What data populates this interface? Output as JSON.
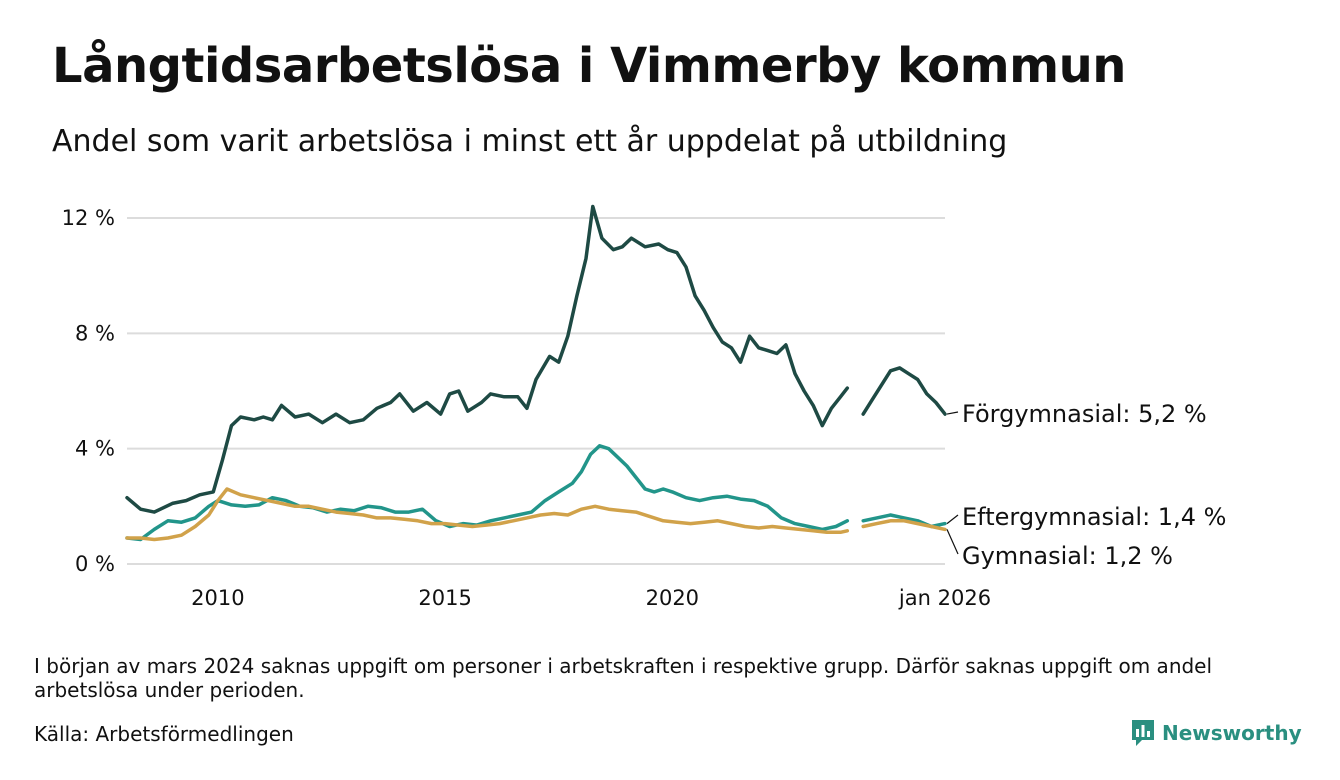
{
  "title": "Långtidsarbetslösa i Vimmerby kommun",
  "subtitle": "Andel som varit arbetslösa i minst ett år uppdelat på utbildning",
  "note": "I början av mars 2024 saknas uppgift om personer i arbetskraften i respektive grupp. Därför saknas uppgift om andel arbetslösa under perioden.",
  "source": "Källa: Arbetsförmedlingen",
  "brand": {
    "name": "Newsworthy",
    "icon": "newsworthy-logo-icon",
    "color": "#2a8f80"
  },
  "chart_data": {
    "type": "line",
    "title": "Långtidsarbetslösa i Vimmerby kommun",
    "ylabel": "",
    "xlabel": "",
    "x_range": [
      2008.0,
      2026.0
    ],
    "ylim": [
      0,
      12.6
    ],
    "y_ticks": [
      0,
      4,
      8,
      12
    ],
    "y_tick_labels": [
      "0 %",
      "4 %",
      "8 %",
      "12 %"
    ],
    "x_ticks": [
      2010,
      2015,
      2020,
      2026.0
    ],
    "x_tick_labels": [
      "2010",
      "2015",
      "2020",
      "jan 2026"
    ],
    "grid": true,
    "gap": [
      2023.85,
      2024.2
    ],
    "series": [
      {
        "name": "Förgymnasial",
        "label": "Förgymnasial: 5,2 %",
        "color": "#1e4a44",
        "points": [
          [
            2008.0,
            2.3
          ],
          [
            2008.3,
            1.9
          ],
          [
            2008.6,
            1.8
          ],
          [
            2009.0,
            2.1
          ],
          [
            2009.3,
            2.2
          ],
          [
            2009.6,
            2.4
          ],
          [
            2009.9,
            2.5
          ],
          [
            2010.1,
            3.6
          ],
          [
            2010.3,
            4.8
          ],
          [
            2010.5,
            5.1
          ],
          [
            2010.8,
            5.0
          ],
          [
            2011.0,
            5.1
          ],
          [
            2011.2,
            5.0
          ],
          [
            2011.4,
            5.5
          ],
          [
            2011.7,
            5.1
          ],
          [
            2012.0,
            5.2
          ],
          [
            2012.3,
            4.9
          ],
          [
            2012.6,
            5.2
          ],
          [
            2012.9,
            4.9
          ],
          [
            2013.2,
            5.0
          ],
          [
            2013.5,
            5.4
          ],
          [
            2013.8,
            5.6
          ],
          [
            2014.0,
            5.9
          ],
          [
            2014.3,
            5.3
          ],
          [
            2014.6,
            5.6
          ],
          [
            2014.9,
            5.2
          ],
          [
            2015.1,
            5.9
          ],
          [
            2015.3,
            6.0
          ],
          [
            2015.5,
            5.3
          ],
          [
            2015.8,
            5.6
          ],
          [
            2016.0,
            5.9
          ],
          [
            2016.3,
            5.8
          ],
          [
            2016.6,
            5.8
          ],
          [
            2016.8,
            5.4
          ],
          [
            2017.0,
            6.4
          ],
          [
            2017.3,
            7.2
          ],
          [
            2017.5,
            7.0
          ],
          [
            2017.7,
            7.9
          ],
          [
            2017.9,
            9.3
          ],
          [
            2018.1,
            10.6
          ],
          [
            2018.25,
            12.4
          ],
          [
            2018.45,
            11.3
          ],
          [
            2018.7,
            10.9
          ],
          [
            2018.9,
            11.0
          ],
          [
            2019.1,
            11.3
          ],
          [
            2019.4,
            11.0
          ],
          [
            2019.7,
            11.1
          ],
          [
            2019.9,
            10.9
          ],
          [
            2020.1,
            10.8
          ],
          [
            2020.3,
            10.3
          ],
          [
            2020.5,
            9.3
          ],
          [
            2020.7,
            8.8
          ],
          [
            2020.9,
            8.2
          ],
          [
            2021.1,
            7.7
          ],
          [
            2021.3,
            7.5
          ],
          [
            2021.5,
            7.0
          ],
          [
            2021.7,
            7.9
          ],
          [
            2021.9,
            7.5
          ],
          [
            2022.1,
            7.4
          ],
          [
            2022.3,
            7.3
          ],
          [
            2022.5,
            7.6
          ],
          [
            2022.7,
            6.6
          ],
          [
            2022.9,
            6.0
          ],
          [
            2023.1,
            5.5
          ],
          [
            2023.3,
            4.8
          ],
          [
            2023.5,
            5.4
          ],
          [
            2023.7,
            5.8
          ],
          [
            2023.85,
            6.1
          ],
          [
            2024.2,
            5.2
          ],
          [
            2024.4,
            5.7
          ],
          [
            2024.6,
            6.2
          ],
          [
            2024.8,
            6.7
          ],
          [
            2025.0,
            6.8
          ],
          [
            2025.2,
            6.6
          ],
          [
            2025.4,
            6.4
          ],
          [
            2025.6,
            5.9
          ],
          [
            2025.8,
            5.6
          ],
          [
            2026.0,
            5.2
          ]
        ]
      },
      {
        "name": "Eftergymnasial",
        "label": "Eftergymnasial: 1,4 %",
        "color": "#22958a",
        "points": [
          [
            2008.0,
            0.9
          ],
          [
            2008.3,
            0.85
          ],
          [
            2008.6,
            1.2
          ],
          [
            2008.9,
            1.5
          ],
          [
            2009.2,
            1.45
          ],
          [
            2009.5,
            1.6
          ],
          [
            2009.8,
            2.0
          ],
          [
            2010.0,
            2.2
          ],
          [
            2010.3,
            2.05
          ],
          [
            2010.6,
            2.0
          ],
          [
            2010.9,
            2.05
          ],
          [
            2011.2,
            2.3
          ],
          [
            2011.5,
            2.2
          ],
          [
            2011.8,
            2.0
          ],
          [
            2012.1,
            1.95
          ],
          [
            2012.4,
            1.8
          ],
          [
            2012.7,
            1.9
          ],
          [
            2013.0,
            1.85
          ],
          [
            2013.3,
            2.0
          ],
          [
            2013.6,
            1.95
          ],
          [
            2013.9,
            1.8
          ],
          [
            2014.2,
            1.8
          ],
          [
            2014.5,
            1.9
          ],
          [
            2014.8,
            1.5
          ],
          [
            2015.1,
            1.3
          ],
          [
            2015.4,
            1.4
          ],
          [
            2015.7,
            1.35
          ],
          [
            2016.0,
            1.5
          ],
          [
            2016.3,
            1.6
          ],
          [
            2016.6,
            1.7
          ],
          [
            2016.9,
            1.8
          ],
          [
            2017.2,
            2.2
          ],
          [
            2017.5,
            2.5
          ],
          [
            2017.8,
            2.8
          ],
          [
            2018.0,
            3.2
          ],
          [
            2018.2,
            3.8
          ],
          [
            2018.4,
            4.1
          ],
          [
            2018.6,
            4.0
          ],
          [
            2018.8,
            3.7
          ],
          [
            2019.0,
            3.4
          ],
          [
            2019.2,
            3.0
          ],
          [
            2019.4,
            2.6
          ],
          [
            2019.6,
            2.5
          ],
          [
            2019.8,
            2.6
          ],
          [
            2020.0,
            2.5
          ],
          [
            2020.3,
            2.3
          ],
          [
            2020.6,
            2.2
          ],
          [
            2020.9,
            2.3
          ],
          [
            2021.2,
            2.35
          ],
          [
            2021.5,
            2.25
          ],
          [
            2021.8,
            2.2
          ],
          [
            2022.1,
            2.0
          ],
          [
            2022.4,
            1.6
          ],
          [
            2022.7,
            1.4
          ],
          [
            2023.0,
            1.3
          ],
          [
            2023.3,
            1.2
          ],
          [
            2023.6,
            1.3
          ],
          [
            2023.85,
            1.5
          ],
          [
            2024.2,
            1.5
          ],
          [
            2024.5,
            1.6
          ],
          [
            2024.8,
            1.7
          ],
          [
            2025.1,
            1.6
          ],
          [
            2025.4,
            1.5
          ],
          [
            2025.7,
            1.3
          ],
          [
            2026.0,
            1.4
          ]
        ]
      },
      {
        "name": "Gymnasial",
        "label": "Gymnasial: 1,2 %",
        "color": "#d1a24a",
        "points": [
          [
            2008.0,
            0.9
          ],
          [
            2008.3,
            0.9
          ],
          [
            2008.6,
            0.85
          ],
          [
            2008.9,
            0.9
          ],
          [
            2009.2,
            1.0
          ],
          [
            2009.5,
            1.3
          ],
          [
            2009.8,
            1.7
          ],
          [
            2010.0,
            2.2
          ],
          [
            2010.2,
            2.6
          ],
          [
            2010.5,
            2.4
          ],
          [
            2010.8,
            2.3
          ],
          [
            2011.1,
            2.2
          ],
          [
            2011.4,
            2.1
          ],
          [
            2011.7,
            2.0
          ],
          [
            2012.0,
            2.0
          ],
          [
            2012.3,
            1.9
          ],
          [
            2012.6,
            1.8
          ],
          [
            2012.9,
            1.75
          ],
          [
            2013.2,
            1.7
          ],
          [
            2013.5,
            1.6
          ],
          [
            2013.8,
            1.6
          ],
          [
            2014.1,
            1.55
          ],
          [
            2014.4,
            1.5
          ],
          [
            2014.7,
            1.4
          ],
          [
            2015.0,
            1.4
          ],
          [
            2015.3,
            1.35
          ],
          [
            2015.6,
            1.3
          ],
          [
            2015.9,
            1.35
          ],
          [
            2016.2,
            1.4
          ],
          [
            2016.5,
            1.5
          ],
          [
            2016.8,
            1.6
          ],
          [
            2017.1,
            1.7
          ],
          [
            2017.4,
            1.75
          ],
          [
            2017.7,
            1.7
          ],
          [
            2018.0,
            1.9
          ],
          [
            2018.3,
            2.0
          ],
          [
            2018.6,
            1.9
          ],
          [
            2018.9,
            1.85
          ],
          [
            2019.2,
            1.8
          ],
          [
            2019.5,
            1.65
          ],
          [
            2019.8,
            1.5
          ],
          [
            2020.1,
            1.45
          ],
          [
            2020.4,
            1.4
          ],
          [
            2020.7,
            1.45
          ],
          [
            2021.0,
            1.5
          ],
          [
            2021.3,
            1.4
          ],
          [
            2021.6,
            1.3
          ],
          [
            2021.9,
            1.25
          ],
          [
            2022.2,
            1.3
          ],
          [
            2022.5,
            1.25
          ],
          [
            2022.8,
            1.2
          ],
          [
            2023.1,
            1.15
          ],
          [
            2023.4,
            1.1
          ],
          [
            2023.7,
            1.1
          ],
          [
            2023.85,
            1.15
          ],
          [
            2024.2,
            1.3
          ],
          [
            2024.5,
            1.4
          ],
          [
            2024.8,
            1.5
          ],
          [
            2025.1,
            1.5
          ],
          [
            2025.4,
            1.4
          ],
          [
            2025.7,
            1.3
          ],
          [
            2026.0,
            1.2
          ]
        ]
      }
    ]
  }
}
